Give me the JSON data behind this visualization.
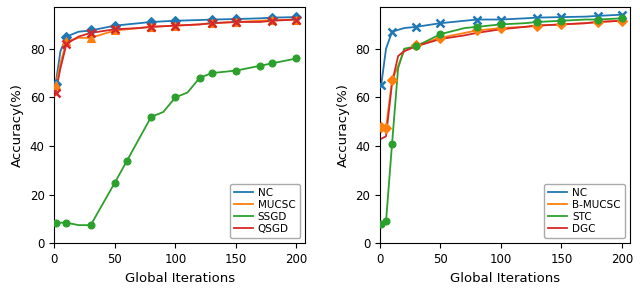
{
  "ylabel": "Accuracy(%)",
  "xlabel": "Global Iterations",
  "plot1": {
    "NC": {
      "x": [
        1,
        5,
        10,
        20,
        30,
        50,
        70,
        80,
        100,
        120,
        130,
        150,
        170,
        180,
        200
      ],
      "y": [
        65.5,
        79,
        85,
        87,
        87.5,
        89.5,
        90.5,
        91,
        91.5,
        91.8,
        92,
        92.2,
        92.5,
        92.8,
        93
      ],
      "color": "#1f77b4",
      "marker": "D",
      "marker_x": [
        1,
        10,
        30,
        50,
        80,
        100,
        130,
        150,
        180,
        200
      ],
      "label": "NC",
      "markersize": 5
    },
    "MUCSC": {
      "x": [
        1,
        5,
        10,
        20,
        30,
        50,
        70,
        80,
        100,
        120,
        130,
        150,
        170,
        180,
        200
      ],
      "y": [
        65,
        74,
        83,
        84.5,
        84.5,
        87.5,
        88.5,
        89,
        89.5,
        90,
        90.5,
        91,
        91.5,
        91.8,
        92
      ],
      "color": "#ff7f0e",
      "marker": "^",
      "marker_x": [
        1,
        10,
        30,
        50,
        80,
        100,
        130,
        150,
        180,
        200
      ],
      "label": "MUCSC",
      "markersize": 6
    },
    "SSGD": {
      "x": [
        1,
        5,
        10,
        20,
        30,
        50,
        60,
        70,
        80,
        90,
        100,
        110,
        120,
        130,
        150,
        170,
        180,
        200
      ],
      "y": [
        8.5,
        8.5,
        8.5,
        7.5,
        7.5,
        25,
        34,
        43,
        52,
        54,
        60,
        62,
        68,
        70,
        71,
        73,
        74,
        76
      ],
      "color": "#2ca02c",
      "marker": "o",
      "marker_x": [
        1,
        10,
        30,
        50,
        60,
        80,
        100,
        120,
        130,
        150,
        170,
        180,
        200
      ],
      "label": "SSGD",
      "markersize": 5
    },
    "QSGD": {
      "x": [
        1,
        5,
        10,
        20,
        30,
        50,
        70,
        80,
        100,
        120,
        130,
        150,
        170,
        180,
        200
      ],
      "y": [
        62,
        72,
        82,
        85,
        86.5,
        88,
        88.5,
        89,
        89.5,
        90,
        90.5,
        91,
        91,
        91.5,
        92
      ],
      "color": "#d62728",
      "marker": "x",
      "marker_x": [
        1,
        10,
        30,
        50,
        80,
        100,
        130,
        150,
        180,
        200
      ],
      "label": "QSGD",
      "markersize": 6
    }
  },
  "plot2": {
    "NC": {
      "x": [
        1,
        5,
        10,
        20,
        30,
        50,
        70,
        80,
        100,
        120,
        130,
        150,
        170,
        180,
        200
      ],
      "y": [
        65,
        80,
        87,
        88.5,
        89,
        90.5,
        91.5,
        92,
        92,
        92.5,
        92.8,
        93,
        93.2,
        93.5,
        94
      ],
      "color": "#1f77b4",
      "marker": "x",
      "marker_x": [
        1,
        10,
        30,
        50,
        80,
        100,
        130,
        150,
        180,
        200
      ],
      "label": "NC",
      "markersize": 6
    },
    "B-MUCSC": {
      "x": [
        1,
        5,
        10,
        20,
        30,
        50,
        70,
        80,
        100,
        120,
        130,
        150,
        170,
        180,
        200
      ],
      "y": [
        48,
        47.5,
        67,
        79,
        81.5,
        84.5,
        86.5,
        87.5,
        88.5,
        89,
        89.5,
        90,
        90.5,
        91,
        91.5
      ],
      "color": "#ff7f0e",
      "marker": "D",
      "marker_x": [
        1,
        5,
        10,
        30,
        50,
        80,
        100,
        130,
        150,
        180,
        200
      ],
      "label": "B-MUCSC",
      "markersize": 5
    },
    "STC": {
      "x": [
        1,
        5,
        10,
        15,
        20,
        30,
        50,
        70,
        80,
        100,
        120,
        130,
        150,
        170,
        180,
        200
      ],
      "y": [
        8,
        9,
        41,
        72,
        80,
        81,
        86,
        88.5,
        89,
        90,
        90.5,
        91,
        91.5,
        92,
        92,
        92.5
      ],
      "color": "#2ca02c",
      "marker": "o",
      "marker_x": [
        1,
        5,
        10,
        30,
        50,
        80,
        100,
        130,
        150,
        180,
        200
      ],
      "label": "STC",
      "markersize": 5
    },
    "DGC": {
      "x": [
        1,
        5,
        10,
        15,
        20,
        30,
        50,
        70,
        80,
        100,
        120,
        130,
        150,
        170,
        180,
        200
      ],
      "y": [
        43,
        44,
        66,
        77,
        79,
        81,
        84,
        85.5,
        86.5,
        88,
        89,
        89.5,
        90,
        90.5,
        91,
        91.5
      ],
      "color": "#d62728",
      "marker": "",
      "marker_x": [],
      "label": "DGC",
      "markersize": 5
    }
  }
}
